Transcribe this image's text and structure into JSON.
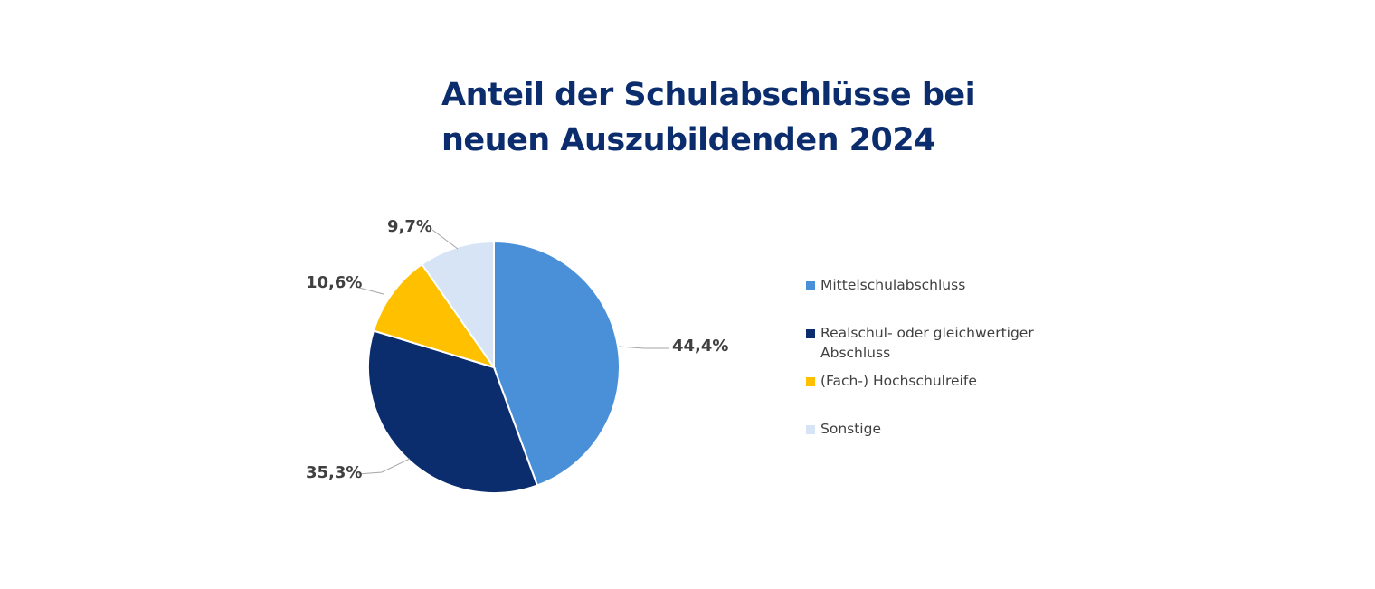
{
  "colors": {
    "title": "#0B2D6E",
    "text": "#404040",
    "leader": "#A6A6A6"
  },
  "chart_data": {
    "type": "pie",
    "title_lines": [
      "Anteil der Schulabschlüsse bei",
      "neuen Auszubildenden 2024"
    ],
    "categories": [
      "Mittelschulabschluss",
      "Realschul- oder gleichwertiger Abschluss",
      "(Fach-) Hochschulreife",
      "Sonstige"
    ],
    "values": [
      44.4,
      35.3,
      10.6,
      9.7
    ],
    "labels": [
      "44,4%",
      "35,3%",
      "10,6%",
      "9,7%"
    ],
    "colors": [
      "#4A90D9",
      "#0B2D6E",
      "#FFC000",
      "#D6E4F5"
    ],
    "legend_position": "right"
  }
}
